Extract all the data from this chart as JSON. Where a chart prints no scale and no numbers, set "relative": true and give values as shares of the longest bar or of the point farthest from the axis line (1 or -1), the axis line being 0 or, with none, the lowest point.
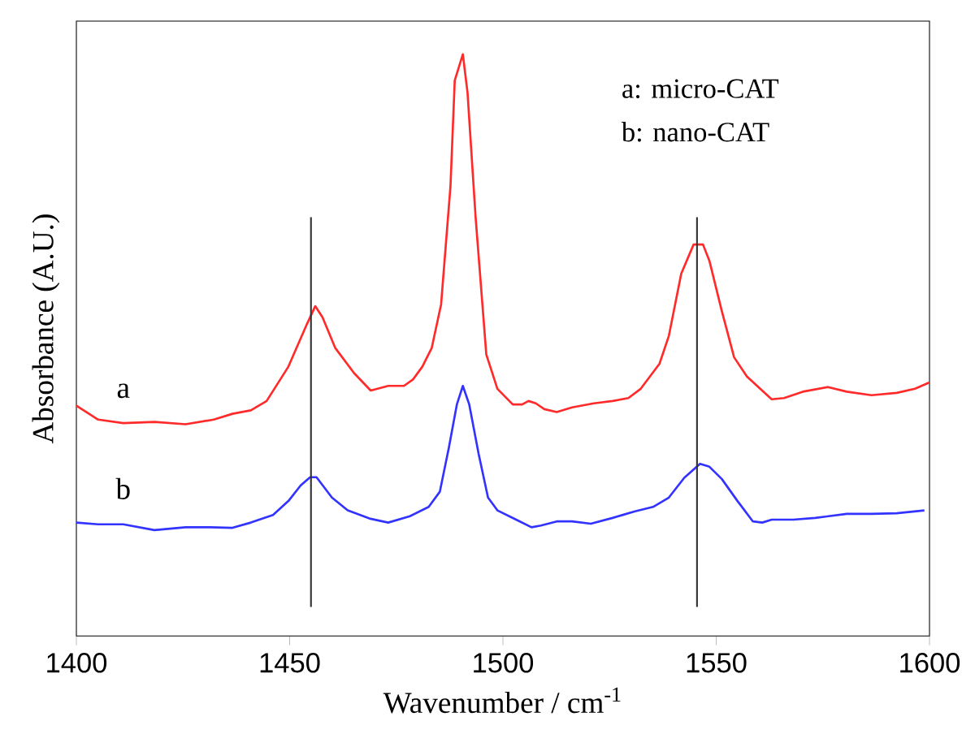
{
  "chart_data": {
    "type": "line",
    "xlabel": "Wavenumber / cm$^{-1}$",
    "ylabel": "Absorbance (A.U.)",
    "relative": true,
    "xlim": [
      1400,
      1600
    ],
    "xticks": [
      1400,
      1450,
      1500,
      1550,
      1600
    ],
    "annotations": [
      "a:  micro-CAT",
      "b:  nano-CAT"
    ],
    "ref_lines": [
      {
        "axis": "x",
        "value": 1455,
        "color": "#333333"
      },
      {
        "axis": "x",
        "value": 1545.5,
        "color": "#333333"
      }
    ],
    "series": [
      {
        "name": "a",
        "color": "#ff2a2a",
        "x": [
          1400,
          1405.1,
          1411.0,
          1418.3,
          1425.6,
          1432.2,
          1436.6,
          1440.9,
          1444.6,
          1449.7,
          1454.1,
          1456.0,
          1457.7,
          1460.7,
          1465.1,
          1469.0,
          1473.1,
          1476.8,
          1478.9,
          1481.1,
          1483.3,
          1485.5,
          1487.7,
          1488.7,
          1490.6,
          1491.7,
          1493.6,
          1496.1,
          1498.7,
          1502.3,
          1504.5,
          1506.0,
          1507.7,
          1509.7,
          1512.6,
          1516.2,
          1521.3,
          1525.7,
          1529.4,
          1532.3,
          1536.7,
          1538.9,
          1541.8,
          1544.7,
          1546.9,
          1548.4,
          1551.3,
          1554.2,
          1557.2,
          1563.0,
          1565.9,
          1570.3,
          1576.2,
          1580.6,
          1586.4,
          1592.3,
          1596.6,
          1600
        ],
        "values": [
          0.396,
          0.372,
          0.366,
          0.368,
          0.364,
          0.372,
          0.382,
          0.388,
          0.404,
          0.463,
          0.537,
          0.567,
          0.548,
          0.495,
          0.452,
          0.422,
          0.43,
          0.43,
          0.441,
          0.463,
          0.495,
          0.57,
          0.773,
          0.955,
          1,
          0.934,
          0.719,
          0.484,
          0.425,
          0.398,
          0.398,
          0.404,
          0.4,
          0.39,
          0.385,
          0.393,
          0.4,
          0.404,
          0.409,
          0.425,
          0.468,
          0.516,
          0.623,
          0.673,
          0.673,
          0.645,
          0.559,
          0.479,
          0.446,
          0.407,
          0.409,
          0.42,
          0.428,
          0.42,
          0.414,
          0.418,
          0.425,
          0.436
        ]
      },
      {
        "name": "b",
        "color": "#3333ff",
        "x": [
          1400,
          1405.1,
          1411.0,
          1418.3,
          1425.6,
          1431.4,
          1436.6,
          1440.9,
          1446.1,
          1449.7,
          1452.6,
          1454.8,
          1456.3,
          1459.9,
          1463.6,
          1468.7,
          1473.1,
          1478.2,
          1482.6,
          1485.2,
          1487.3,
          1489.2,
          1490.6,
          1492.1,
          1494.3,
          1496.5,
          1498.7,
          1503.1,
          1506.7,
          1508.9,
          1512.6,
          1516.2,
          1520.6,
          1525.7,
          1530.8,
          1535.2,
          1538.9,
          1542.5,
          1546.2,
          1548.4,
          1551.3,
          1555.0,
          1558.6,
          1560.8,
          1563.0,
          1568.1,
          1573.2,
          1580.6,
          1586.4,
          1592.3,
          1598.8
        ],
        "values": [
          0.195,
          0.192,
          0.192,
          0.182,
          0.187,
          0.187,
          0.186,
          0.195,
          0.208,
          0.232,
          0.259,
          0.273,
          0.273,
          0.238,
          0.216,
          0.202,
          0.195,
          0.206,
          0.222,
          0.248,
          0.323,
          0.398,
          0.43,
          0.398,
          0.313,
          0.238,
          0.216,
          0.2,
          0.187,
          0.19,
          0.197,
          0.197,
          0.193,
          0.203,
          0.214,
          0.222,
          0.238,
          0.272,
          0.296,
          0.291,
          0.27,
          0.232,
          0.197,
          0.195,
          0.2,
          0.2,
          0.203,
          0.21,
          0.21,
          0.211,
          0.216
        ]
      }
    ]
  }
}
